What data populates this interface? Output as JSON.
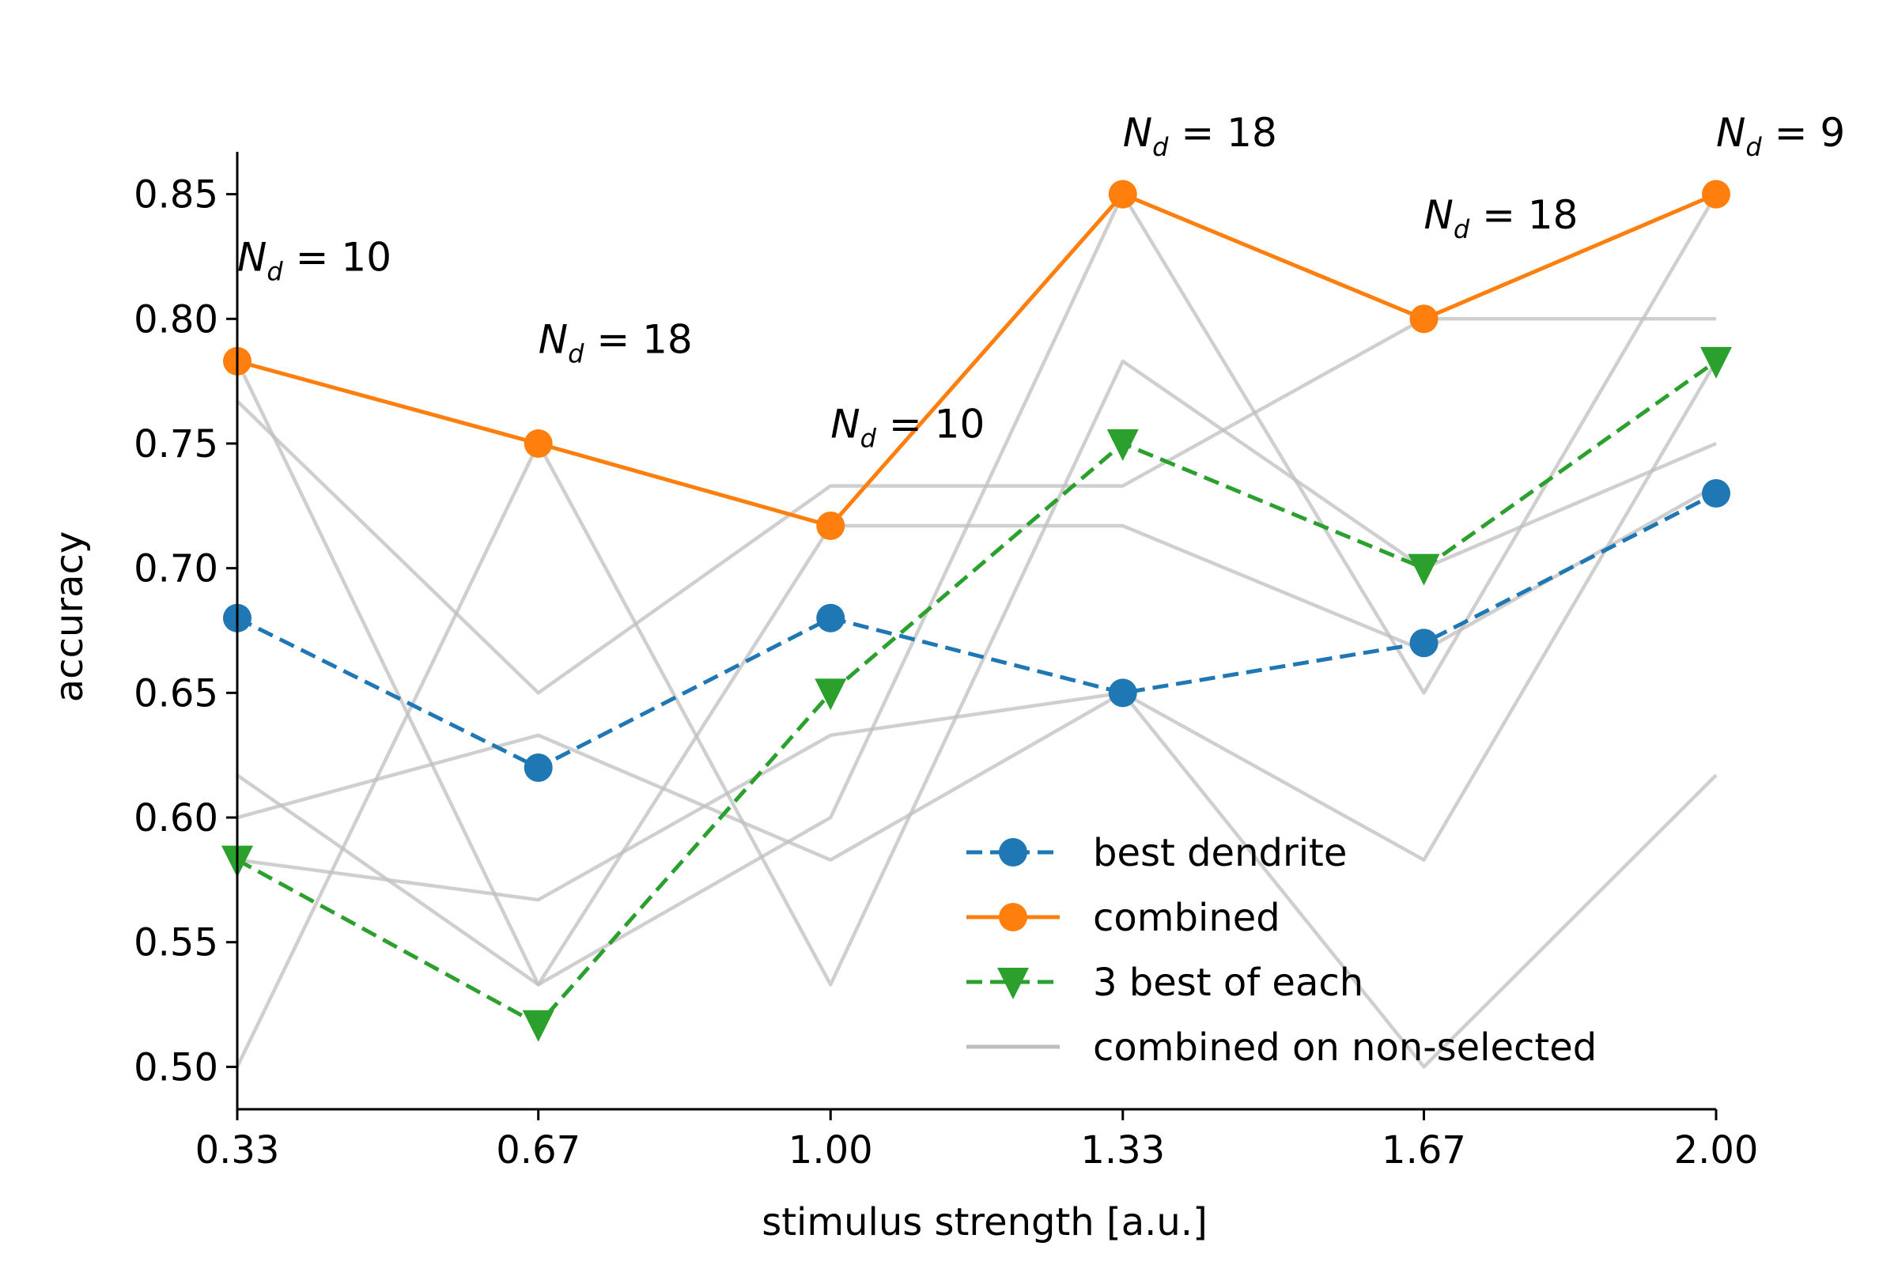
{
  "chart_data": {
    "type": "line",
    "xlabel": "stimulus strength [a.u.]",
    "ylabel": "accuracy",
    "xlim": [
      0.33,
      2.0
    ],
    "ylim": [
      0.483,
      0.867
    ],
    "x": [
      0.33,
      0.67,
      1.0,
      1.33,
      1.67,
      2.0
    ],
    "x_tick_labels": [
      "0.33",
      "0.67",
      "1.00",
      "1.33",
      "1.67",
      "2.00"
    ],
    "y_ticks": [
      0.5,
      0.55,
      0.6,
      0.65,
      0.7,
      0.75,
      0.8,
      0.85
    ],
    "y_tick_labels": [
      "0.50",
      "0.55",
      "0.60",
      "0.65",
      "0.70",
      "0.75",
      "0.80",
      "0.85"
    ],
    "series": [
      {
        "name": "best dendrite",
        "values": [
          0.68,
          0.62,
          0.68,
          0.65,
          0.67,
          0.73
        ],
        "color": "#1f77b4",
        "style": "dashed",
        "marker": "circle"
      },
      {
        "name": "combined",
        "values": [
          0.783,
          0.75,
          0.717,
          0.85,
          0.8,
          0.85
        ],
        "color": "#ff7f0e",
        "style": "solid",
        "marker": "circle"
      },
      {
        "name": "3 best of each",
        "values": [
          0.583,
          0.517,
          0.65,
          0.75,
          0.7,
          0.783
        ],
        "color": "#2ca02c",
        "style": "dashed",
        "marker": "triangle-down"
      }
    ],
    "background_series": {
      "name": "combined on non-selected",
      "color": "#bfbfbf",
      "lines": [
        [
          0.783,
          0.533,
          0.717,
          0.717,
          0.667,
          0.733
        ],
        [
          0.767,
          0.65,
          0.733,
          0.733,
          0.8,
          0.8
        ],
        [
          0.617,
          0.533,
          0.6,
          0.85,
          0.65,
          0.85
        ],
        [
          0.6,
          0.633,
          0.583,
          0.65,
          0.5,
          0.617
        ],
        [
          0.5,
          0.75,
          0.533,
          0.783,
          0.7,
          0.75
        ],
        [
          0.583,
          0.567,
          0.633,
          0.65,
          0.583,
          0.783
        ]
      ]
    },
    "legend": {
      "position": "lower-right",
      "entries": [
        "best dendrite",
        "combined",
        "3 best of each",
        "combined on non-selected"
      ]
    },
    "annotations": [
      {
        "base": "N",
        "subscript": "d",
        "rest": " = 10",
        "x": 0.33,
        "y": 0.825
      },
      {
        "base": "N",
        "subscript": "d",
        "rest": " = 18",
        "x": 0.67,
        "y": 0.792
      },
      {
        "base": "N",
        "subscript": "d",
        "rest": " = 10",
        "x": 1.0,
        "y": 0.758
      },
      {
        "base": "N",
        "subscript": "d",
        "rest": " = 18",
        "x": 1.33,
        "y": 0.875
      },
      {
        "base": "N",
        "subscript": "d",
        "rest": " = 18",
        "x": 1.67,
        "y": 0.842
      },
      {
        "base": "N",
        "subscript": "d",
        "rest": " = 9",
        "x": 2.0,
        "y": 0.875
      }
    ],
    "grid": false
  }
}
